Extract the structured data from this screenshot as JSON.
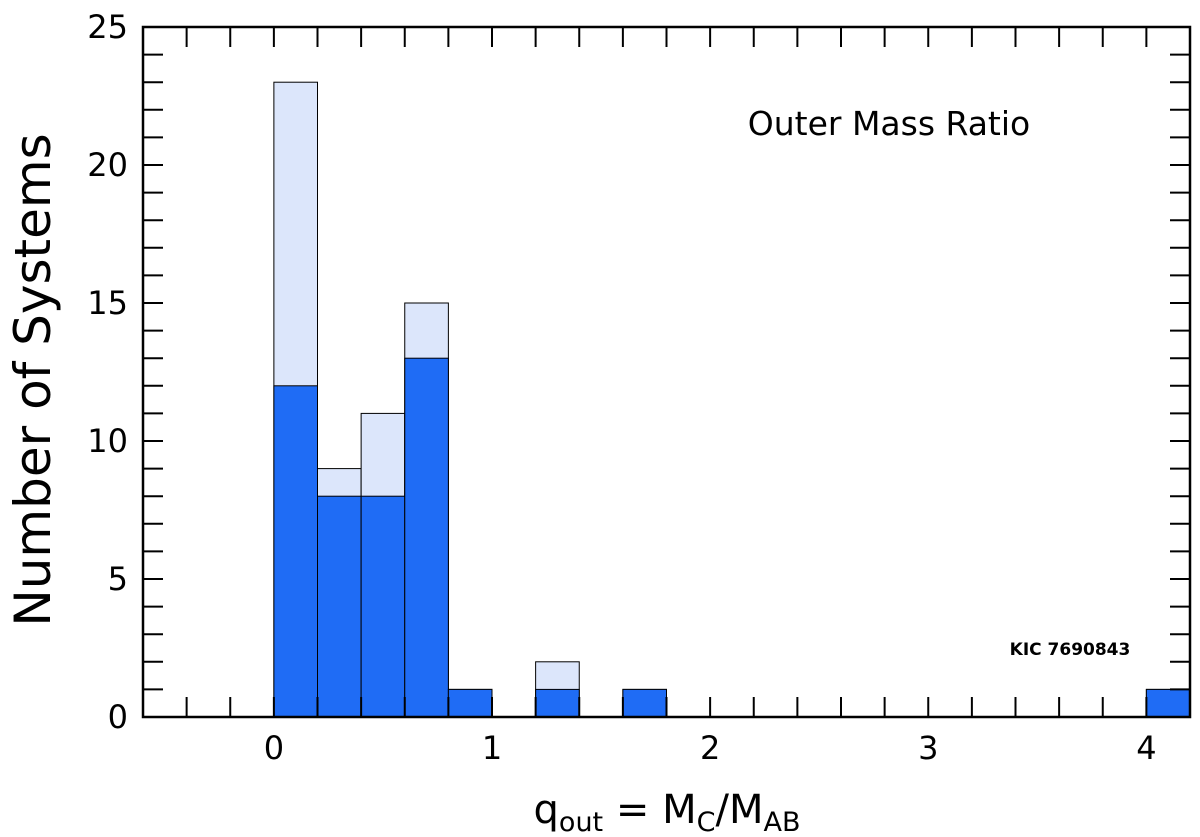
{
  "chart_data": {
    "type": "bar",
    "bin_width": 0.2,
    "bin_starts": [
      0.0,
      0.2,
      0.4,
      0.6,
      0.8,
      1.2,
      1.6,
      4.0
    ],
    "series": [
      {
        "values": [
          23,
          9,
          11,
          15,
          1,
          2,
          1,
          1
        ],
        "color": "#dce6fb"
      },
      {
        "values": [
          12,
          8,
          8,
          13,
          1,
          1,
          1,
          1
        ],
        "color": "#1f6cf5"
      }
    ],
    "xlim": [
      -0.6,
      4.2
    ],
    "ylim": [
      0,
      25
    ],
    "xticks": [
      0,
      1,
      2,
      3,
      4
    ],
    "xtick_labels": [
      "0",
      "1",
      "2",
      "3",
      "4"
    ],
    "yticks": [
      0,
      5,
      10,
      15,
      20,
      25
    ],
    "ytick_labels": [
      "0",
      "5",
      "10",
      "15",
      "20",
      "25"
    ],
    "xlabel": {
      "q": "q",
      "q_sub": "out",
      "mid": " = M",
      "c_sub": "C",
      "slash": "/M",
      "ab_sub": "AB"
    },
    "ylabel": "Number of Systems",
    "annotations": {
      "title": "Outer Mass Ratio",
      "object": "KIC 7690843"
    },
    "grid": false
  }
}
